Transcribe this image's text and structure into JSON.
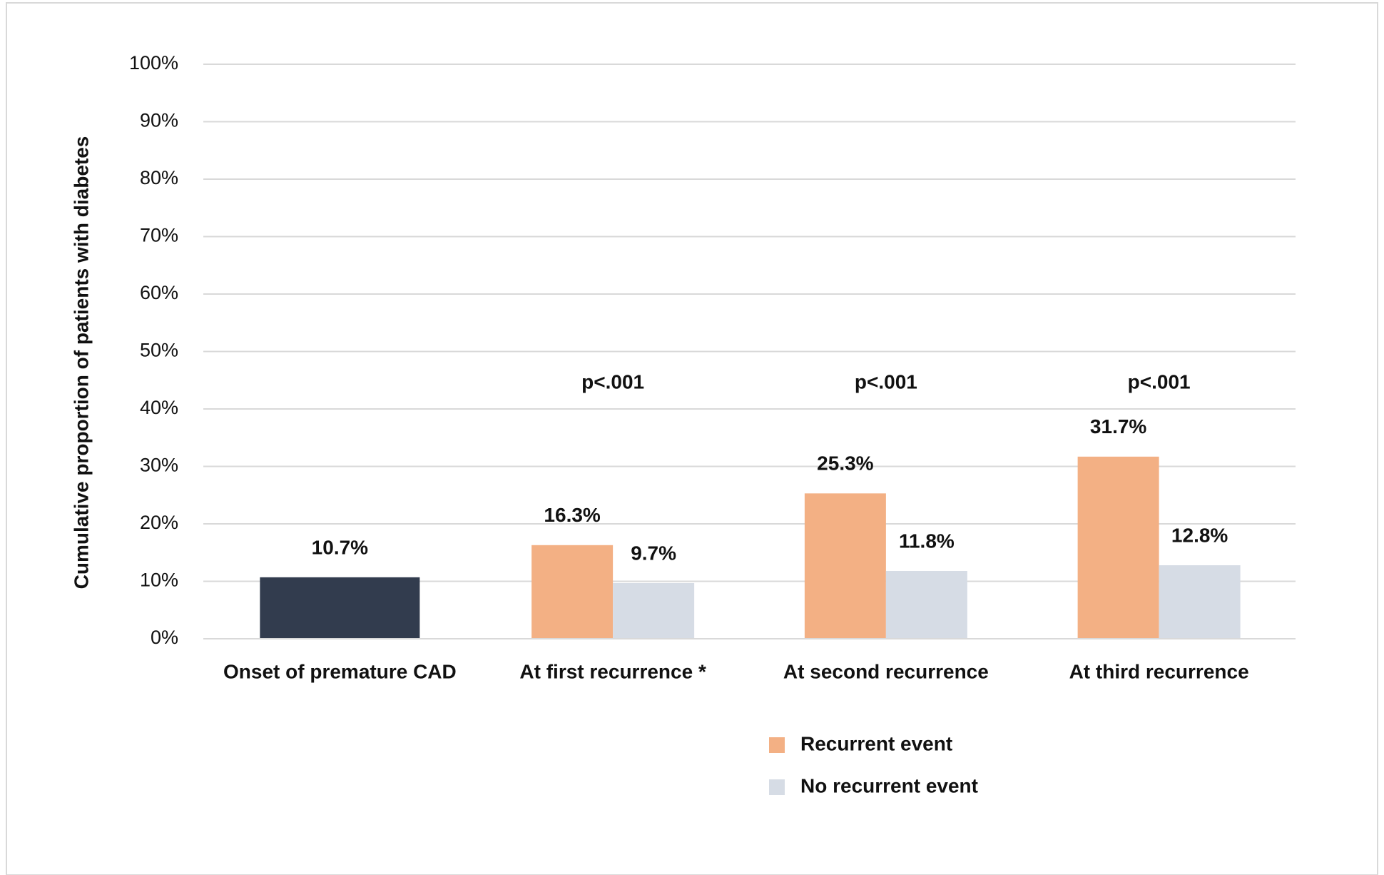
{
  "chart_data": {
    "type": "bar",
    "y_label": "Cumulative proportion of patients with diabetes",
    "categories": [
      "Onset of premature CAD",
      "At first recurrence *",
      "At second recurrence",
      "At third recurrence"
    ],
    "values": [
      10.7,
      null,
      null,
      null
    ],
    "value_labels": [
      "10.7%",
      null,
      null,
      null
    ],
    "color": "#323c4e",
    "series": [
      {
        "name": "Recurrent event",
        "color": "#f3b084",
        "values": [
          null,
          16.3,
          25.3,
          31.7
        ],
        "value_labels": [
          null,
          "16.3%",
          "25.3%",
          "31.7%"
        ]
      },
      {
        "name": "No recurrent event",
        "color": "#d6dce5",
        "values": [
          null,
          9.7,
          11.8,
          12.8
        ],
        "value_labels": [
          null,
          "9.7%",
          "11.8%",
          "12.8%"
        ]
      }
    ],
    "annotations": [
      null,
      "p<.001",
      "p<.001",
      "p<.001"
    ],
    "ylim": [
      0,
      100
    ],
    "yticks": [
      {
        "value": 0,
        "label": "0%"
      },
      {
        "value": 10,
        "label": "10%"
      },
      {
        "value": 20,
        "label": "20%"
      },
      {
        "value": 30,
        "label": "30%"
      },
      {
        "value": 40,
        "label": "40%"
      },
      {
        "value": 50,
        "label": "50%"
      },
      {
        "value": 60,
        "label": "60%"
      },
      {
        "value": 70,
        "label": "70%"
      },
      {
        "value": 80,
        "label": "80%"
      },
      {
        "value": 90,
        "label": "90%"
      },
      {
        "value": 100,
        "label": "100%"
      }
    ],
    "grid": true
  }
}
